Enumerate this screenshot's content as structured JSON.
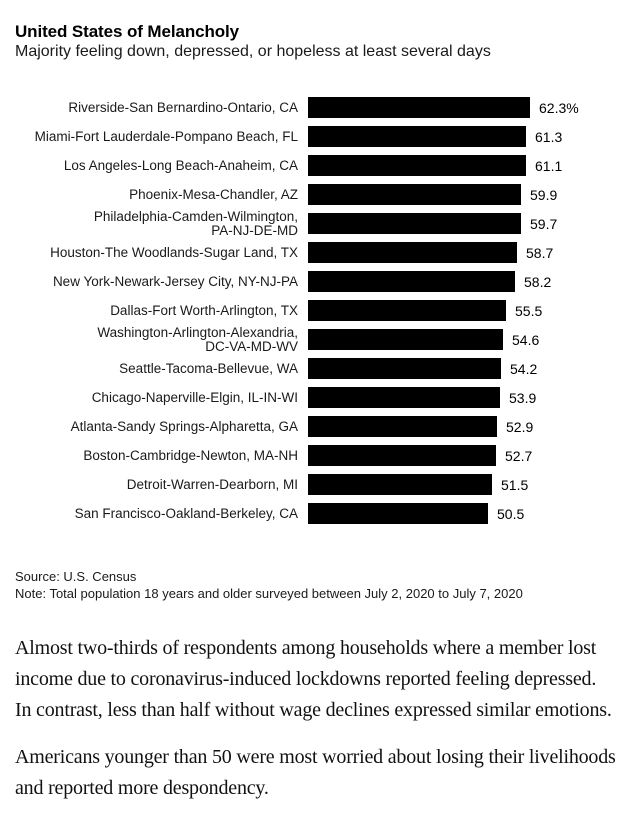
{
  "chart_data": {
    "type": "bar",
    "orientation": "horizontal",
    "title": "United States of Melancholy",
    "subtitle": "Majority feeling down, depressed, or hopeless at least several days",
    "categories": [
      "Riverside-San Bernardino-Ontario, CA",
      "Miami-Fort Lauderdale-Pompano Beach, FL",
      "Los Angeles-Long Beach-Anaheim, CA",
      "Phoenix-Mesa-Chandler, AZ",
      "Philadelphia-Camden-Wilmington,\nPA-NJ-DE-MD",
      "Houston-The Woodlands-Sugar Land, TX",
      "New York-Newark-Jersey City, NY-NJ-PA",
      "Dallas-Fort Worth-Arlington, TX",
      "Washington-Arlington-Alexandria,\nDC-VA-MD-WV",
      "Seattle-Tacoma-Bellevue, WA",
      "Chicago-Naperville-Elgin, IL-IN-WI",
      "Atlanta-Sandy Springs-Alpharetta, GA",
      "Boston-Cambridge-Newton, MA-NH",
      "Detroit-Warren-Dearborn, MI",
      "San Francisco-Oakland-Berkeley, CA"
    ],
    "values": [
      62.3,
      61.3,
      61.1,
      59.9,
      59.7,
      58.7,
      58.2,
      55.5,
      54.6,
      54.2,
      53.9,
      52.9,
      52.7,
      51.5,
      50.5
    ],
    "value_labels": [
      "62.3%",
      "61.3",
      "61.1",
      "59.9",
      "59.7",
      "58.7",
      "58.2",
      "55.5",
      "54.6",
      "54.2",
      "53.9",
      "52.9",
      "52.7",
      "51.5",
      "50.5"
    ],
    "xlabel": "",
    "ylabel": "",
    "xlim": [
      0,
      62.3
    ],
    "grid": false,
    "legend": false,
    "bar_color": "#000000",
    "source": "Source: U.S. Census",
    "note": "Note: Total population 18 years and older surveyed between July 2, 2020 to July 7, 2020"
  },
  "article": {
    "paragraphs": [
      "Almost two-thirds of respondents among households where a member lost income due to coronavirus-induced lockdowns reported feeling depressed. In contrast, less than half without wage declines expressed similar emotions.",
      "Americans younger than 50 were most worried about losing their livelihoods and reported more despondency."
    ]
  }
}
